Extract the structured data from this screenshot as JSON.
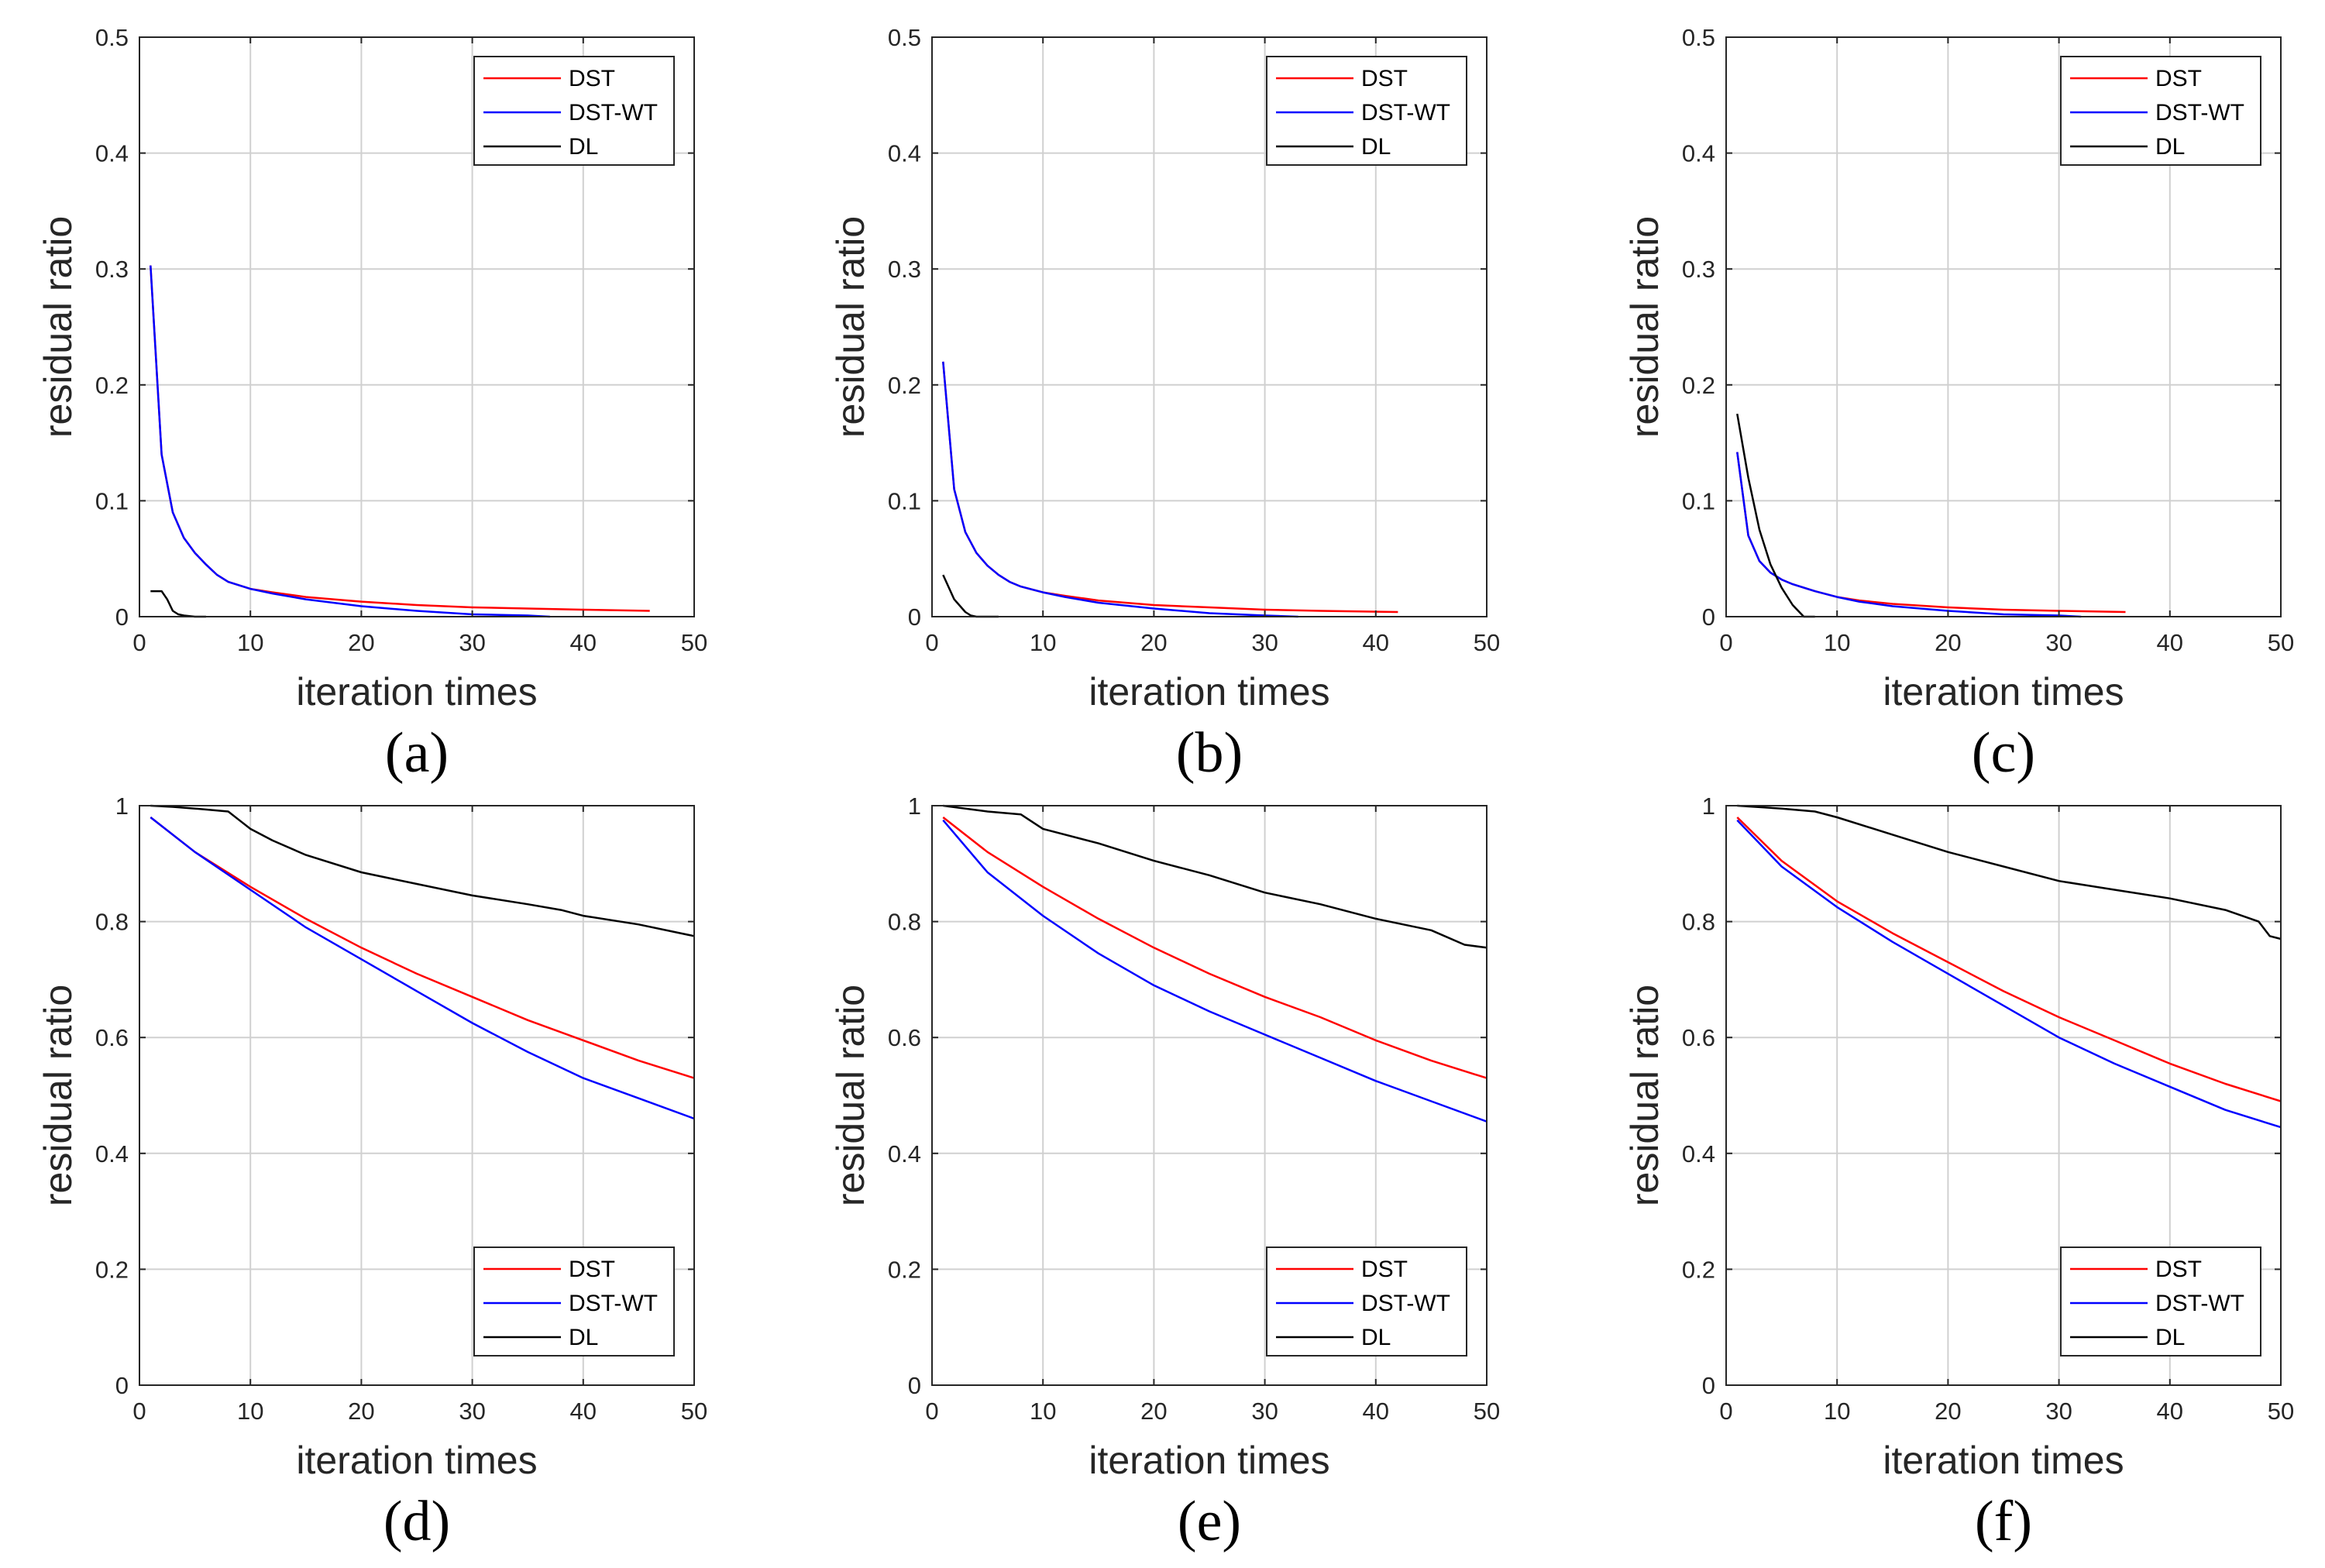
{
  "figure": {
    "panels": [
      {
        "caption": "(a)",
        "legend_position": "top-right",
        "chart_data": {
          "type": "line",
          "xlabel": "iteration times",
          "ylabel": "residual ratio",
          "xlim": [
            0,
            50
          ],
          "ylim": [
            0,
            0.5
          ],
          "xticks": [
            "0",
            "10",
            "20",
            "30",
            "40",
            "50"
          ],
          "yticks": [
            "0",
            "0.1",
            "0.2",
            "0.3",
            "0.4",
            "0.5"
          ],
          "grid": true,
          "series": [
            {
              "name": "DST",
              "color": "#ff0000",
              "x": [
                1,
                2,
                3,
                4,
                5,
                6,
                7,
                8,
                10,
                12,
                15,
                20,
                25,
                30,
                35,
                40,
                46
              ],
              "y": [
                0.303,
                0.14,
                0.09,
                0.068,
                0.055,
                0.045,
                0.036,
                0.03,
                0.024,
                0.021,
                0.017,
                0.013,
                0.01,
                0.008,
                0.007,
                0.006,
                0.005
              ]
            },
            {
              "name": "DST-WT",
              "color": "#0000ff",
              "x": [
                1,
                2,
                3,
                4,
                5,
                6,
                7,
                8,
                10,
                12,
                15,
                20,
                25,
                30,
                35,
                37
              ],
              "y": [
                0.303,
                0.14,
                0.09,
                0.068,
                0.055,
                0.045,
                0.036,
                0.03,
                0.024,
                0.02,
                0.015,
                0.009,
                0.005,
                0.002,
                0.001,
                0.0
              ]
            },
            {
              "name": "DL",
              "color": "#000000",
              "x": [
                1,
                2,
                2.5,
                3,
                3.5,
                4,
                5,
                6
              ],
              "y": [
                0.022,
                0.022,
                0.015,
                0.005,
                0.002,
                0.001,
                0.0,
                0.0
              ]
            }
          ]
        }
      },
      {
        "caption": "(b)",
        "legend_position": "top-right",
        "chart_data": {
          "type": "line",
          "xlabel": "iteration times",
          "ylabel": "residual ratio",
          "xlim": [
            0,
            50
          ],
          "ylim": [
            0,
            0.5
          ],
          "xticks": [
            "0",
            "10",
            "20",
            "30",
            "40",
            "50"
          ],
          "yticks": [
            "0",
            "0.1",
            "0.2",
            "0.3",
            "0.4",
            "0.5"
          ],
          "grid": true,
          "series": [
            {
              "name": "DST",
              "color": "#ff0000",
              "x": [
                1,
                2,
                3,
                4,
                5,
                6,
                7,
                8,
                10,
                12,
                15,
                20,
                25,
                30,
                35,
                42
              ],
              "y": [
                0.22,
                0.11,
                0.073,
                0.055,
                0.044,
                0.036,
                0.03,
                0.026,
                0.021,
                0.018,
                0.014,
                0.01,
                0.008,
                0.006,
                0.005,
                0.004
              ]
            },
            {
              "name": "DST-WT",
              "color": "#0000ff",
              "x": [
                1,
                2,
                3,
                4,
                5,
                6,
                7,
                8,
                10,
                12,
                15,
                20,
                25,
                30,
                33
              ],
              "y": [
                0.22,
                0.11,
                0.073,
                0.055,
                0.044,
                0.036,
                0.03,
                0.026,
                0.021,
                0.017,
                0.012,
                0.007,
                0.003,
                0.001,
                0.0
              ]
            },
            {
              "name": "DL",
              "color": "#000000",
              "x": [
                1,
                2,
                3,
                3.5,
                4,
                5,
                6
              ],
              "y": [
                0.036,
                0.015,
                0.004,
                0.001,
                0.0,
                0.0,
                0.0
              ]
            }
          ]
        }
      },
      {
        "caption": "(c)",
        "legend_position": "top-right",
        "chart_data": {
          "type": "line",
          "xlabel": "iteration times",
          "ylabel": "residual ratio",
          "xlim": [
            0,
            50
          ],
          "ylim": [
            0,
            0.5
          ],
          "xticks": [
            "0",
            "10",
            "20",
            "30",
            "40",
            "50"
          ],
          "yticks": [
            "0",
            "0.1",
            "0.2",
            "0.3",
            "0.4",
            "0.5"
          ],
          "grid": true,
          "series": [
            {
              "name": "DST",
              "color": "#ff0000",
              "x": [
                1,
                2,
                3,
                4,
                5,
                6,
                8,
                10,
                12,
                15,
                20,
                25,
                30,
                36
              ],
              "y": [
                0.142,
                0.07,
                0.048,
                0.038,
                0.032,
                0.028,
                0.022,
                0.017,
                0.014,
                0.011,
                0.008,
                0.006,
                0.005,
                0.004
              ]
            },
            {
              "name": "DST-WT",
              "color": "#0000ff",
              "x": [
                1,
                2,
                3,
                4,
                5,
                6,
                8,
                10,
                12,
                15,
                20,
                25,
                30,
                32
              ],
              "y": [
                0.142,
                0.07,
                0.048,
                0.038,
                0.032,
                0.028,
                0.022,
                0.017,
                0.013,
                0.009,
                0.005,
                0.002,
                0.001,
                0.0
              ]
            },
            {
              "name": "DL",
              "color": "#000000",
              "x": [
                1,
                2,
                3,
                4,
                5,
                6,
                7,
                8
              ],
              "y": [
                0.175,
                0.12,
                0.075,
                0.045,
                0.025,
                0.01,
                0.0,
                0.0
              ]
            }
          ]
        }
      },
      {
        "caption": "(d)",
        "legend_position": "bottom-right",
        "chart_data": {
          "type": "line",
          "xlabel": "iteration times",
          "ylabel": "residual ratio",
          "xlim": [
            0,
            50
          ],
          "ylim": [
            0,
            1
          ],
          "xticks": [
            "0",
            "10",
            "20",
            "30",
            "40",
            "50"
          ],
          "yticks": [
            "0",
            "0.2",
            "0.4",
            "0.6",
            "0.8",
            "1"
          ],
          "grid": true,
          "series": [
            {
              "name": "DST",
              "color": "#ff0000",
              "x": [
                1,
                5,
                10,
                15,
                20,
                25,
                30,
                35,
                40,
                45,
                50
              ],
              "y": [
                0.98,
                0.92,
                0.86,
                0.805,
                0.755,
                0.71,
                0.67,
                0.63,
                0.595,
                0.56,
                0.53
              ]
            },
            {
              "name": "DST-WT",
              "color": "#0000ff",
              "x": [
                1,
                5,
                10,
                15,
                20,
                25,
                30,
                35,
                40,
                45,
                50
              ],
              "y": [
                0.98,
                0.92,
                0.855,
                0.79,
                0.735,
                0.68,
                0.625,
                0.575,
                0.53,
                0.495,
                0.46
              ]
            },
            {
              "name": "DL",
              "color": "#000000",
              "x": [
                1,
                3,
                5,
                8,
                9,
                10,
                12,
                15,
                20,
                25,
                30,
                35,
                38,
                40,
                45,
                50
              ],
              "y": [
                1.0,
                0.998,
                0.995,
                0.99,
                0.975,
                0.96,
                0.94,
                0.915,
                0.885,
                0.865,
                0.845,
                0.83,
                0.82,
                0.81,
                0.795,
                0.775
              ]
            }
          ]
        }
      },
      {
        "caption": "(e)",
        "legend_position": "bottom-right",
        "chart_data": {
          "type": "line",
          "xlabel": "iteration times",
          "ylabel": "residual ratio",
          "xlim": [
            0,
            50
          ],
          "ylim": [
            0,
            1
          ],
          "xticks": [
            "0",
            "10",
            "20",
            "30",
            "40",
            "50"
          ],
          "yticks": [
            "0",
            "0.2",
            "0.4",
            "0.6",
            "0.8",
            "1"
          ],
          "grid": true,
          "series": [
            {
              "name": "DST",
              "color": "#ff0000",
              "x": [
                1,
                5,
                10,
                15,
                20,
                25,
                30,
                35,
                40,
                45,
                50
              ],
              "y": [
                0.98,
                0.92,
                0.86,
                0.805,
                0.755,
                0.71,
                0.67,
                0.635,
                0.595,
                0.56,
                0.53
              ]
            },
            {
              "name": "DST-WT",
              "color": "#0000ff",
              "x": [
                1,
                5,
                10,
                15,
                20,
                25,
                30,
                35,
                40,
                45,
                50
              ],
              "y": [
                0.975,
                0.885,
                0.81,
                0.745,
                0.69,
                0.645,
                0.605,
                0.565,
                0.525,
                0.49,
                0.455
              ]
            },
            {
              "name": "DL",
              "color": "#000000",
              "x": [
                1,
                5,
                8,
                10,
                15,
                20,
                25,
                30,
                35,
                40,
                45,
                48,
                50
              ],
              "y": [
                1.0,
                0.99,
                0.985,
                0.96,
                0.935,
                0.905,
                0.88,
                0.85,
                0.83,
                0.805,
                0.785,
                0.76,
                0.755
              ]
            }
          ]
        }
      },
      {
        "caption": "(f)",
        "legend_position": "bottom-right",
        "chart_data": {
          "type": "line",
          "xlabel": "iteration times",
          "ylabel": "residual ratio",
          "xlim": [
            0,
            50
          ],
          "ylim": [
            0,
            1
          ],
          "xticks": [
            "0",
            "10",
            "20",
            "30",
            "40",
            "50"
          ],
          "yticks": [
            "0",
            "0.2",
            "0.4",
            "0.6",
            "0.8",
            "1"
          ],
          "grid": true,
          "series": [
            {
              "name": "DST",
              "color": "#ff0000",
              "x": [
                1,
                5,
                10,
                15,
                20,
                25,
                30,
                35,
                40,
                45,
                50
              ],
              "y": [
                0.98,
                0.905,
                0.835,
                0.78,
                0.73,
                0.68,
                0.635,
                0.595,
                0.555,
                0.52,
                0.49
              ]
            },
            {
              "name": "DST-WT",
              "color": "#0000ff",
              "x": [
                1,
                5,
                10,
                15,
                20,
                25,
                30,
                35,
                40,
                45,
                50
              ],
              "y": [
                0.975,
                0.895,
                0.825,
                0.765,
                0.71,
                0.655,
                0.6,
                0.555,
                0.515,
                0.475,
                0.445
              ]
            },
            {
              "name": "DL",
              "color": "#000000",
              "x": [
                1,
                5,
                8,
                10,
                15,
                20,
                25,
                30,
                35,
                40,
                45,
                48,
                49,
                50
              ],
              "y": [
                1.0,
                0.995,
                0.99,
                0.98,
                0.95,
                0.92,
                0.895,
                0.87,
                0.855,
                0.84,
                0.82,
                0.8,
                0.775,
                0.77
              ]
            }
          ]
        }
      }
    ]
  }
}
